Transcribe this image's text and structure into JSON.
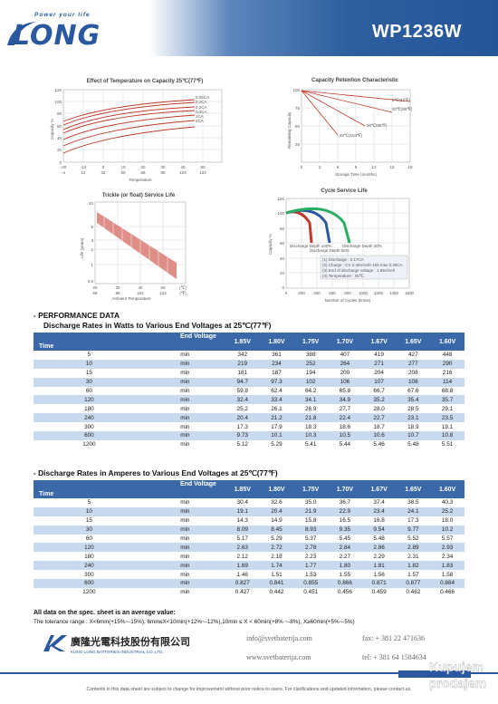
{
  "header": {
    "logo_text": "LONG",
    "tagline": "Power your life",
    "model": "WP1236W",
    "colors": {
      "brand_blue": "#2a58a0",
      "table_header": "#3a68a8",
      "row_alt": "#c9d9ee"
    }
  },
  "charts": {
    "effect_temp": {
      "title": "Effect of Temperature on Capacity  25℃(77℉)",
      "ylabel": "Capacity %",
      "xlabel": "Temperature",
      "y_ticks": [
        "120",
        "100",
        "80",
        "60",
        "40",
        "20",
        "0"
      ],
      "x_ticks_c": [
        "-20",
        "-10",
        "0",
        "10",
        "20",
        "30",
        "40",
        "50"
      ],
      "x_ticks_f": [
        "-4",
        "14",
        "32",
        "50",
        "68",
        "86",
        "104",
        "122"
      ],
      "series": [
        "0.05CA",
        "0.1CA",
        "0.2CA",
        "0.4CA",
        "1CA",
        "2CA",
        "3CA"
      ]
    },
    "retention": {
      "title": "Capacity Retention Characteristic",
      "ylabel": "Remaining Capacity",
      "xlabel": "Storage Time (months)",
      "x_ticks": [
        "0",
        "3",
        "6",
        "9",
        "12",
        "15",
        "18"
      ],
      "y_ticks": [
        "100",
        "75",
        "50",
        "25"
      ],
      "series": [
        "0℃(32℉)",
        "20℃(68℉)",
        "30℃(86℉)",
        "40℃(104℉)"
      ]
    },
    "trickle": {
      "title": "Trickle (or float) Service Life",
      "ylabel": "Life (years)",
      "xlabel": "Ambient Temperature",
      "y_ticks": [
        "10",
        "5",
        "3",
        "2",
        "1",
        "0.5"
      ],
      "x_ticks_c": [
        "20",
        "30",
        "40",
        "50",
        "(℃)"
      ],
      "x_ticks_f": [
        "68",
        "86",
        "104",
        "122",
        "(℉)"
      ]
    },
    "cycle": {
      "title": "Cycle Service Life",
      "ylabel": "Capacity %",
      "xlabel": "Number of Cycles (times)",
      "y_ticks": [
        "120",
        "100",
        "80",
        "60",
        "40",
        "20",
        "0"
      ],
      "x_ticks": [
        "0",
        "200",
        "400",
        "600",
        "800",
        "1000",
        "1200",
        "1400",
        "1600"
      ],
      "labels": [
        "Discharge Depth 100%",
        "Discharge Depth 50%",
        "Discharge Depth 30%"
      ],
      "legend_lines": [
        "(1) Discharge : 0.17CA",
        "(2) Charge : CV 2.45V/cell+1h5 max 0.25CA",
        "(3) End of discharge voltage : 1.65V/cell",
        "(4) Temperature : 25℃"
      ]
    }
  },
  "performance_heading": "- PERFORMANCE DATA",
  "watts_table": {
    "title": "Discharge Rates in Watts to Various End Voltages at 25℃(77℉)",
    "corner_top": "End Voltage",
    "corner_bottom": "Time",
    "columns": [
      "1.85V",
      "1.80V",
      "1.75V",
      "1.70V",
      "1.67V",
      "1.65V",
      "1.60V"
    ],
    "rows": [
      {
        "t": "5",
        "u": "min",
        "v": [
          "342",
          "361",
          "388",
          "407",
          "419",
          "427",
          "448"
        ]
      },
      {
        "t": "10",
        "u": "min",
        "v": [
          "219",
          "234",
          "252",
          "264",
          "271",
          "277",
          "290"
        ]
      },
      {
        "t": "15",
        "u": "min",
        "v": [
          "181",
          "187",
          "194",
          "200",
          "204",
          "208",
          "216"
        ]
      },
      {
        "t": "30",
        "u": "min",
        "v": [
          "94.7",
          "97.3",
          "102",
          "106",
          "107",
          "108",
          "114"
        ]
      },
      {
        "t": "60",
        "u": "min",
        "v": [
          "59.8",
          "62.4",
          "64.2",
          "65.8",
          "66.7",
          "67.6",
          "68.8"
        ]
      },
      {
        "t": "120",
        "u": "min",
        "v": [
          "32.4",
          "33.4",
          "34.1",
          "34.9",
          "35.2",
          "35.4",
          "35.7"
        ]
      },
      {
        "t": "180",
        "u": "min",
        "v": [
          "25.2",
          "26.1",
          "26.9",
          "27.7",
          "28.0",
          "28.5",
          "29.1"
        ]
      },
      {
        "t": "240",
        "u": "min",
        "v": [
          "20.4",
          "21.2",
          "21.8",
          "22.4",
          "22.7",
          "23.1",
          "23.5"
        ]
      },
      {
        "t": "300",
        "u": "min",
        "v": [
          "17.3",
          "17.9",
          "18.3",
          "18.6",
          "18.7",
          "18.9",
          "19.1"
        ]
      },
      {
        "t": "600",
        "u": "min",
        "v": [
          "9.73",
          "10.1",
          "10.3",
          "10.5",
          "10.6",
          "10.7",
          "10.8"
        ]
      },
      {
        "t": "1200",
        "u": "min",
        "v": [
          "5.12",
          "5.29",
          "5.41",
          "5.44",
          "5.46",
          "5.48",
          "5.51"
        ]
      }
    ]
  },
  "amps_table": {
    "title": "- Discharge Rates in Amperes to Various End Voltages at 25℃(77℉)",
    "corner_top": "End Voltage",
    "corner_bottom": "Time",
    "columns": [
      "1.85V",
      "1.80V",
      "1.75V",
      "1.70V",
      "1.67V",
      "1.65V",
      "1.60V"
    ],
    "rows": [
      {
        "t": "5",
        "u": "min",
        "v": [
          "30.4",
          "32.6",
          "35.0",
          "36.7",
          "37.4",
          "38.5",
          "40.3"
        ]
      },
      {
        "t": "10",
        "u": "min",
        "v": [
          "19.1",
          "20.4",
          "21.9",
          "22.9",
          "23.4",
          "24.1",
          "25.2"
        ]
      },
      {
        "t": "15",
        "u": "min",
        "v": [
          "14.3",
          "14.9",
          "15.8",
          "16.5",
          "16.8",
          "17.3",
          "18.0"
        ]
      },
      {
        "t": "30",
        "u": "min",
        "v": [
          "8.09",
          "8.45",
          "8.93",
          "9.35",
          "9.54",
          "9.77",
          "10.2"
        ]
      },
      {
        "t": "60",
        "u": "min",
        "v": [
          "5.17",
          "5.29",
          "5.37",
          "5.45",
          "5.48",
          "5.52",
          "5.57"
        ]
      },
      {
        "t": "120",
        "u": "min",
        "v": [
          "2.63",
          "2.72",
          "2.78",
          "2.84",
          "2.86",
          "2.89",
          "2.93"
        ]
      },
      {
        "t": "180",
        "u": "min",
        "v": [
          "2.12",
          "2.18",
          "2.23",
          "2.27",
          "2.29",
          "2.31",
          "2.34"
        ]
      },
      {
        "t": "240",
        "u": "min",
        "v": [
          "1.69",
          "1.74",
          "1.77",
          "1.80",
          "1.81",
          "1.82",
          "1.83"
        ]
      },
      {
        "t": "300",
        "u": "min",
        "v": [
          "1.46",
          "1.51",
          "1.53",
          "1.55",
          "1.56",
          "1.57",
          "1.58"
        ]
      },
      {
        "t": "600",
        "u": "min",
        "v": [
          "0.827",
          "0.841",
          "0.855",
          "0.866",
          "0.871",
          "0.877",
          "0.884"
        ]
      },
      {
        "t": "1200",
        "u": "min",
        "v": [
          "0.427",
          "0.442",
          "0.451",
          "0.456",
          "0.459",
          "0.462",
          "0.466"
        ]
      }
    ]
  },
  "notes": {
    "line1": "All data on the spec. sheet is an average value:",
    "line2": "The tolerance range : X<6min(+15%~-15%), 6min≤X<10min(+12%~-12%),10min ≤ X < 60min(+8% ~-8%), X≥60min(+5%~-5%)"
  },
  "footer": {
    "company_cn": "廣隆光電科技股份有限公司",
    "company_en": "KUNG LONG BATTERIES INDUSTRIAL CO.,LTD.",
    "email": "info@svetbaterija.com",
    "fax": "fax: + 381 22 471636",
    "web": "www.svetbaterija.com",
    "tel": "tel: + 381 64 1584634",
    "disclaimer": "Contents in this data sheet are subject to change for improvement without prior notice to users. For clarifications and updated information, please contact us.",
    "watermark_line1": "Kupujem",
    "watermark_line2": "prodajem"
  }
}
